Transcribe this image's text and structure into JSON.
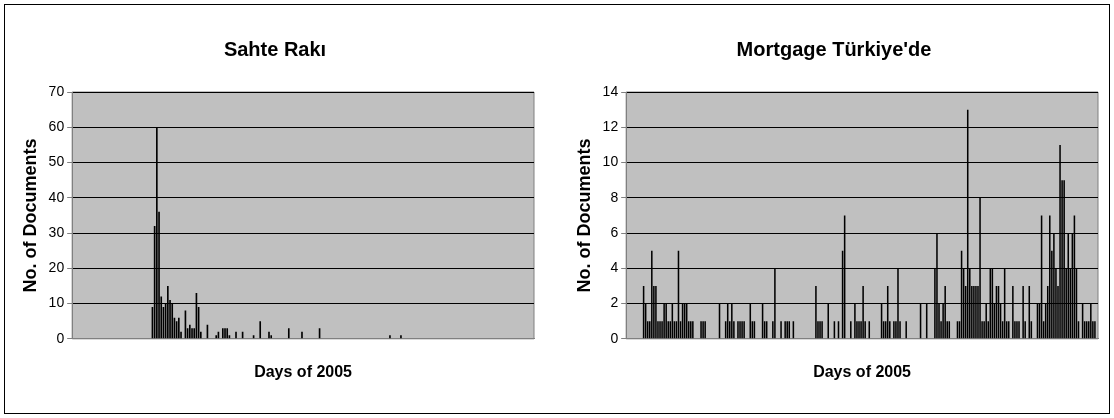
{
  "chart_data": [
    {
      "type": "bar",
      "title": "Sahte Rakı",
      "xlabel": "Days of 2005",
      "ylabel": "No. of Documents",
      "color": "#000000",
      "ylim": [
        0,
        70
      ],
      "yticks": [
        0,
        10,
        20,
        30,
        40,
        50,
        60,
        70
      ],
      "grid": "y",
      "tick_labels": "y",
      "categories": [
        null,
        null,
        null,
        null,
        null,
        null,
        null,
        null,
        null,
        null,
        null,
        null,
        null,
        null,
        null,
        null,
        null,
        null,
        null,
        null,
        null,
        null,
        null,
        null,
        null,
        null,
        null,
        null,
        null,
        null,
        null,
        null,
        null,
        null,
        null,
        null,
        null,
        null,
        null,
        null,
        null,
        null,
        null,
        null,
        null,
        null,
        null,
        null,
        null,
        null,
        null,
        null,
        null,
        null,
        null,
        null,
        null,
        null,
        null,
        null,
        null,
        null,
        null,
        null,
        null,
        null,
        null,
        null,
        null,
        null,
        null,
        null,
        null,
        null,
        null,
        null,
        null,
        null,
        null,
        null,
        null,
        null,
        null,
        null,
        null,
        null,
        null,
        null,
        null,
        null,
        null,
        null,
        null,
        null,
        null,
        null,
        null,
        null,
        null,
        null,
        null,
        null,
        null,
        null,
        null,
        null,
        null,
        null,
        null,
        null,
        null,
        null,
        null,
        null,
        null,
        null,
        null,
        null,
        null,
        null,
        null,
        null,
        null,
        null,
        null,
        null,
        null,
        null,
        null,
        null,
        null,
        null,
        null,
        null,
        null,
        null,
        null,
        null,
        null,
        null,
        null,
        null,
        null,
        null,
        null,
        null,
        null,
        null,
        null,
        null,
        null,
        null,
        null,
        null,
        null,
        null,
        null,
        null,
        null,
        null,
        null,
        null,
        null,
        null,
        null,
        null,
        null,
        null,
        null,
        null,
        null,
        null,
        null,
        null,
        null,
        null,
        null,
        null,
        null,
        null,
        null,
        null,
        null,
        null,
        null,
        null,
        null,
        null,
        null,
        null,
        null,
        null,
        null,
        null,
        null,
        null,
        null,
        null,
        null,
        null,
        null,
        null,
        null,
        null,
        null,
        null,
        null,
        null,
        null,
        null
      ],
      "values": [
        0,
        0,
        0,
        0,
        0,
        0,
        0,
        0,
        0,
        0,
        0,
        0,
        0,
        0,
        0,
        0,
        0,
        0,
        0,
        0,
        0,
        0,
        0,
        0,
        0,
        0,
        0,
        0,
        0,
        0,
        0,
        0,
        0,
        0,
        0,
        0,
        9,
        32,
        60,
        36,
        12,
        9,
        10,
        15,
        11,
        10,
        6,
        5,
        6,
        2,
        0,
        8,
        3,
        4,
        3,
        3,
        13,
        9,
        2,
        0,
        0,
        4,
        0,
        0,
        0,
        1,
        2,
        0,
        3,
        3,
        3,
        1,
        0,
        0,
        2,
        0,
        0,
        2,
        0,
        0,
        0,
        0,
        1,
        0,
        0,
        5,
        0,
        0,
        0,
        2,
        1,
        0,
        0,
        0,
        0,
        0,
        0,
        0,
        3,
        0,
        0,
        0,
        0,
        0,
        2,
        0,
        0,
        0,
        0,
        0,
        0,
        0,
        3,
        0,
        0,
        0,
        0,
        0,
        0,
        0,
        0,
        0,
        0,
        0,
        0,
        0,
        0,
        0,
        0,
        0,
        0,
        0,
        0,
        0,
        0,
        0,
        0,
        0,
        0,
        0,
        0,
        0,
        0,
        0,
        1,
        0,
        0,
        0,
        0,
        1,
        0,
        0,
        0,
        0,
        0,
        0,
        0,
        0,
        0,
        0,
        0,
        0,
        0,
        0,
        0,
        0,
        0,
        0,
        0,
        0,
        0,
        0,
        0,
        0,
        0,
        0,
        0,
        0,
        0,
        0,
        0,
        0,
        0,
        0,
        0,
        0,
        0,
        0,
        0,
        0,
        0,
        0,
        0,
        0,
        0,
        0,
        0,
        0,
        0,
        0,
        0,
        0,
        0,
        0,
        0,
        0,
        0,
        0,
        0,
        0
      ]
    },
    {
      "type": "bar",
      "title": "Mortgage Türkiye'de",
      "xlabel": "Days of 2005",
      "ylabel": "No. of Documents",
      "color": "#000000",
      "ylim": [
        0,
        14
      ],
      "yticks": [
        0,
        2,
        4,
        6,
        8,
        10,
        12,
        14
      ],
      "grid": "y",
      "tick_labels": "y",
      "categories": [
        null,
        null,
        null,
        null,
        null,
        null,
        null,
        null,
        null,
        null,
        null,
        null,
        null,
        null,
        null,
        null,
        null,
        null,
        null,
        null,
        null,
        null,
        null,
        null,
        null,
        null,
        null,
        null,
        null,
        null,
        null,
        null,
        null,
        null,
        null,
        null,
        null,
        null,
        null,
        null,
        null,
        null,
        null,
        null,
        null,
        null,
        null,
        null,
        null,
        null,
        null,
        null,
        null,
        null,
        null,
        null,
        null,
        null,
        null,
        null,
        null,
        null,
        null,
        null,
        null,
        null,
        null,
        null,
        null,
        null,
        null,
        null,
        null,
        null,
        null,
        null,
        null,
        null,
        null,
        null,
        null,
        null,
        null,
        null,
        null,
        null,
        null,
        null,
        null,
        null,
        null,
        null,
        null,
        null,
        null,
        null,
        null,
        null,
        null,
        null,
        null,
        null,
        null,
        null,
        null,
        null,
        null,
        null,
        null,
        null,
        null,
        null,
        null,
        null,
        null,
        null,
        null,
        null,
        null,
        null,
        null,
        null,
        null,
        null,
        null,
        null,
        null,
        null,
        null,
        null,
        null,
        null,
        null,
        null,
        null,
        null,
        null,
        null,
        null,
        null,
        null,
        null,
        null,
        null,
        null,
        null,
        null,
        null,
        null,
        null,
        null,
        null,
        null,
        null,
        null,
        null,
        null,
        null,
        null,
        null,
        null,
        null,
        null,
        null,
        null,
        null,
        null,
        null,
        null,
        null,
        null,
        null,
        null,
        null,
        null,
        null,
        null,
        null,
        null,
        null,
        null,
        null,
        null,
        null,
        null,
        null,
        null,
        null,
        null,
        null,
        null,
        null,
        null,
        null,
        null,
        null,
        null,
        null,
        null,
        null,
        null,
        null,
        null,
        null,
        null,
        null,
        null,
        null,
        null,
        null,
        null,
        null,
        null,
        null,
        null,
        null,
        null,
        null,
        null,
        null,
        null,
        null,
        null,
        null,
        null,
        null,
        null,
        null,
        null,
        null
      ],
      "values": [
        0,
        0,
        0,
        0,
        0,
        0,
        0,
        0,
        3,
        2,
        1,
        1,
        5,
        3,
        3,
        1,
        1,
        1,
        2,
        2,
        1,
        1,
        2,
        1,
        1,
        5,
        1,
        2,
        2,
        2,
        1,
        1,
        1,
        0,
        0,
        0,
        1,
        1,
        1,
        0,
        0,
        0,
        0,
        0,
        0,
        2,
        0,
        0,
        1,
        2,
        1,
        2,
        1,
        0,
        1,
        1,
        1,
        1,
        0,
        0,
        2,
        1,
        1,
        0,
        0,
        0,
        2,
        1,
        1,
        0,
        0,
        1,
        4,
        0,
        0,
        1,
        0,
        1,
        1,
        1,
        0,
        1,
        0,
        0,
        0,
        0,
        0,
        0,
        0,
        0,
        0,
        0,
        3,
        1,
        1,
        1,
        0,
        0,
        2,
        0,
        0,
        1,
        0,
        1,
        0,
        5,
        7,
        0,
        0,
        1,
        0,
        2,
        1,
        1,
        1,
        3,
        1,
        0,
        1,
        0,
        0,
        0,
        0,
        0,
        2,
        1,
        1,
        3,
        1,
        0,
        1,
        1,
        4,
        1,
        0,
        0,
        1,
        0,
        0,
        0,
        0,
        0,
        0,
        2,
        0,
        0,
        2,
        0,
        0,
        0,
        4,
        6,
        2,
        1,
        2,
        3,
        1,
        1,
        0,
        0,
        0,
        1,
        1,
        5,
        4,
        3,
        13,
        4,
        3,
        3,
        3,
        3,
        8,
        1,
        1,
        2,
        1,
        4,
        4,
        2,
        3,
        3,
        2,
        1,
        4,
        1,
        1,
        0,
        3,
        1,
        1,
        1,
        0,
        3,
        1,
        0,
        3,
        1,
        0,
        0,
        2,
        2,
        7,
        1,
        2,
        3,
        7,
        5,
        6,
        4,
        3,
        11,
        9,
        9,
        4,
        6,
        4,
        6,
        7,
        4,
        1,
        0,
        2,
        1,
        1,
        1,
        2,
        1,
        1,
        0
      ]
    }
  ]
}
